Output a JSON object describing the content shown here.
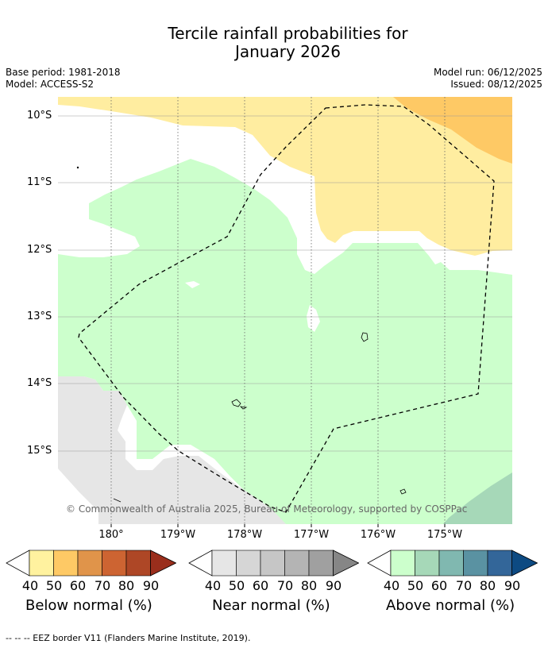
{
  "title_line1": "Tercile rainfall probabilities for",
  "title_line2": "January 2026",
  "meta": {
    "base_period": "Base period: 1981-2018",
    "model": "Model: ACCESS-S2",
    "model_run": "Model run: 06/12/2025",
    "issued": "Issued: 08/12/2025"
  },
  "map": {
    "lat_labels": [
      "10°S",
      "11°S",
      "12°S",
      "13°S",
      "14°S",
      "15°S"
    ],
    "lon_labels": [
      "180°",
      "179°W",
      "178°W",
      "177°W",
      "176°W",
      "175°W"
    ],
    "credit": "© Commonwealth of Australia 2025, Bureau of Meteorology, supported by COSPPac",
    "colors": {
      "below_40": "#ffeda0",
      "below_50": "#fec965",
      "near_40": "#e6e6e6",
      "above_40": "#ccffcc",
      "above_50": "#a6d8b8",
      "eez_border": "#000000"
    }
  },
  "legends": [
    {
      "caption": "Below normal (%)",
      "ticks": [
        "40",
        "50",
        "60",
        "70",
        "80",
        "90"
      ],
      "colors": [
        "#fff29f",
        "#fec965",
        "#e0944a",
        "#cd6432",
        "#ae4726",
        "#9a2e1c"
      ]
    },
    {
      "caption": "Near normal (%)",
      "ticks": [
        "40",
        "50",
        "60",
        "70",
        "80",
        "90"
      ],
      "colors": [
        "#e6e6e6",
        "#d6d6d6",
        "#c6c6c6",
        "#b4b4b4",
        "#a0a0a0",
        "#868686"
      ]
    },
    {
      "caption": "Above normal (%)",
      "ticks": [
        "40",
        "50",
        "60",
        "70",
        "80",
        "90"
      ],
      "colors": [
        "#ccffcc",
        "#a6d8b8",
        "#80b8b0",
        "#5a92a2",
        "#336699",
        "#0d4a82"
      ]
    }
  ],
  "footnote": "--  --  -- EEZ border V11 (Flanders Marine Institute, 2019)."
}
